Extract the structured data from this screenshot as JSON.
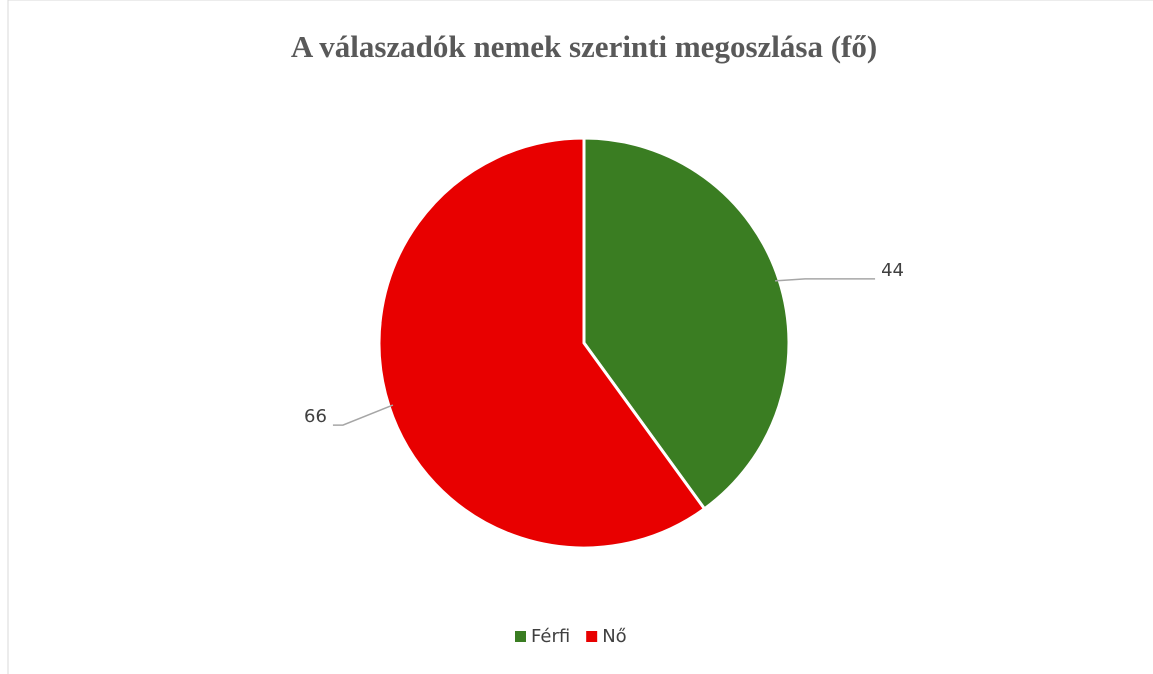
{
  "chart_data": {
    "type": "pie",
    "title": "A válaszadók nemek szerinti megoszlása (fő)",
    "categories": [
      "Férfi",
      "Nő"
    ],
    "values": [
      44,
      66
    ],
    "colors": [
      "#3a7d22",
      "#e80000"
    ],
    "legend": "bottom"
  }
}
